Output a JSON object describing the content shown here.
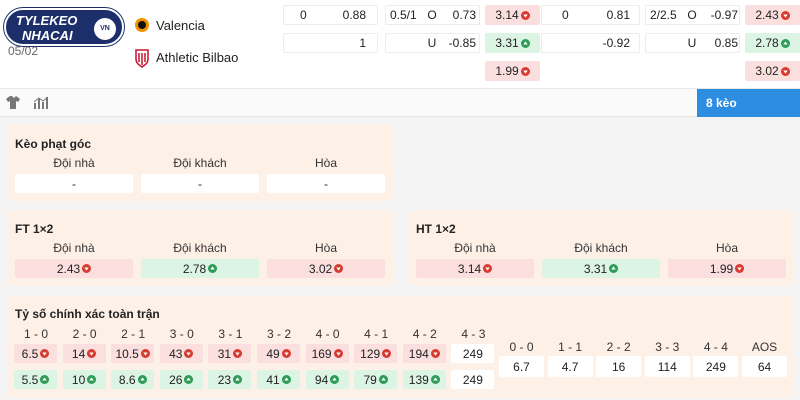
{
  "header": {
    "logo_line1": "TYLEKEO",
    "logo_line2": "NHACAI",
    "logo_badge": "VN",
    "date": "05/02",
    "home_team": "Valencia",
    "away_team": "Athletic Bilbao"
  },
  "odds_table": {
    "rows": [
      [
        "0",
        "0.88",
        "0.5/1",
        "O",
        "0.73",
        {
          "value": "3.14",
          "trend": "down"
        },
        "0",
        "0.81",
        "2/2.5",
        "O",
        "-0.97",
        {
          "value": "2.43",
          "trend": "down"
        }
      ],
      [
        null,
        "1",
        null,
        "U",
        "-0.85",
        {
          "value": "3.31",
          "trend": "up"
        },
        null,
        "-0.92",
        null,
        "U",
        "0.85",
        {
          "value": "2.78",
          "trend": "up"
        }
      ],
      [
        null,
        null,
        null,
        null,
        null,
        {
          "value": "1.99",
          "trend": "down"
        },
        null,
        null,
        null,
        null,
        null,
        {
          "value": "3.02",
          "trend": "down"
        }
      ]
    ]
  },
  "toolbar": {
    "more_button": "8 kèo"
  },
  "panels": [
    {
      "title": "Kèo phạt góc",
      "headers": [
        "Đội nhà",
        "Đội khách",
        "Hòa"
      ],
      "cells": [
        {
          "value": "-"
        },
        {
          "value": "-"
        },
        {
          "value": "-"
        }
      ]
    },
    {
      "title": "FT 1×2",
      "headers": [
        "Đội nhà",
        "Đội khách",
        "Hòa"
      ],
      "cells": [
        {
          "value": "2.43",
          "trend": "down"
        },
        {
          "value": "2.78",
          "trend": "up"
        },
        {
          "value": "3.02",
          "trend": "down"
        }
      ]
    },
    {
      "title": "HT 1×2",
      "headers": [
        "Đội nhà",
        "Đội khách",
        "Hòa"
      ],
      "cells": [
        {
          "value": "3.14",
          "trend": "down"
        },
        {
          "value": "3.31",
          "trend": "up"
        },
        {
          "value": "1.99",
          "trend": "down"
        }
      ]
    }
  ],
  "correct_score": {
    "title": "Tỷ số chính xác toàn trận",
    "scores": [
      "1 - 0",
      "2 - 0",
      "2 - 1",
      "3 - 0",
      "3 - 1",
      "3 - 2",
      "4 - 0",
      "4 - 1",
      "4 - 2",
      "4 - 3"
    ],
    "home": [
      {
        "value": "6.5",
        "trend": "down"
      },
      {
        "value": "14",
        "trend": "down"
      },
      {
        "value": "10.5",
        "trend": "down"
      },
      {
        "value": "43",
        "trend": "down"
      },
      {
        "value": "31",
        "trend": "down"
      },
      {
        "value": "49",
        "trend": "down"
      },
      {
        "value": "169",
        "trend": "down"
      },
      {
        "value": "129",
        "trend": "down"
      },
      {
        "value": "194",
        "trend": "down"
      },
      {
        "value": "249"
      }
    ],
    "away": [
      {
        "value": "5.5",
        "trend": "up"
      },
      {
        "value": "10",
        "trend": "up"
      },
      {
        "value": "8.6",
        "trend": "up"
      },
      {
        "value": "26",
        "trend": "up"
      },
      {
        "value": "23",
        "trend": "up"
      },
      {
        "value": "41",
        "trend": "up"
      },
      {
        "value": "94",
        "trend": "up"
      },
      {
        "value": "79",
        "trend": "up"
      },
      {
        "value": "139",
        "trend": "up"
      },
      {
        "value": "249"
      }
    ],
    "draw_scores": [
      "0 - 0",
      "1 - 1",
      "2 - 2",
      "3 - 3",
      "4 - 4",
      "AOS"
    ],
    "draw": [
      {
        "value": "6.7"
      },
      {
        "value": "4.7"
      },
      {
        "value": "16"
      },
      {
        "value": "114"
      },
      {
        "value": "249"
      },
      {
        "value": "64"
      }
    ]
  }
}
